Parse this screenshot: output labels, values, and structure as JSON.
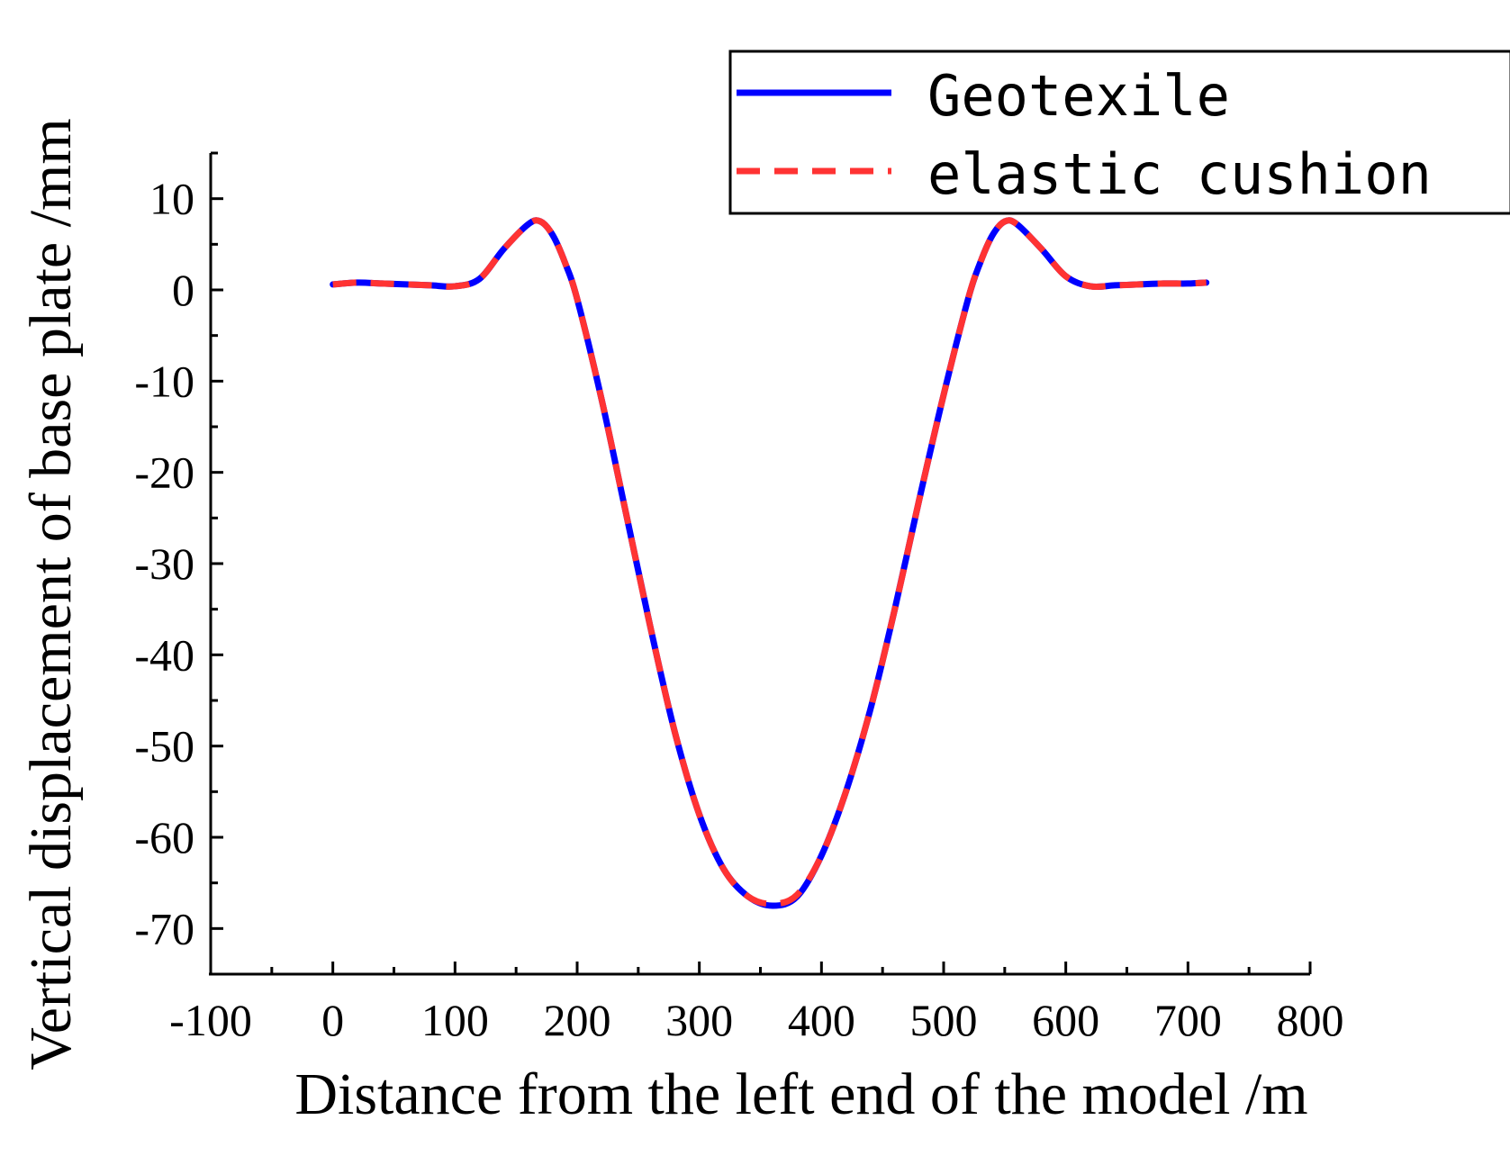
{
  "chart_data": {
    "type": "line",
    "xlabel": "Distance from the left end of the model /m",
    "ylabel": "Vertical displacement of base plate /mm",
    "xlim": [
      -100,
      800
    ],
    "ylim": [
      -75,
      15
    ],
    "x_ticks": [
      -100,
      0,
      100,
      200,
      300,
      400,
      500,
      600,
      700,
      800
    ],
    "y_ticks": [
      10,
      0,
      -10,
      -20,
      -30,
      -40,
      -50,
      -60,
      -70
    ],
    "x_tick_labels": [
      "-100",
      "0",
      "100",
      "200",
      "300",
      "400",
      "500",
      "600",
      "700",
      "800"
    ],
    "y_tick_labels": [
      "10",
      "0",
      "-10",
      "-20",
      "-30",
      "-40",
      "-50",
      "-60",
      "-70"
    ],
    "legend_position": "top-right",
    "grid": false,
    "series": [
      {
        "name": "Geotexile",
        "color": "#0000ff",
        "style": "solid",
        "x": [
          0,
          20,
          40,
          60,
          80,
          100,
          120,
          140,
          160,
          170,
          180,
          190,
          200,
          220,
          240,
          260,
          280,
          300,
          320,
          340,
          360,
          380,
          400,
          420,
          440,
          460,
          480,
          500,
          520,
          530,
          540,
          550,
          560,
          580,
          600,
          620,
          640,
          660,
          680,
          700,
          715
        ],
        "y": [
          0.6,
          0.8,
          0.7,
          0.6,
          0.5,
          0.4,
          1.2,
          4.5,
          7.2,
          7.5,
          6.0,
          3.0,
          -1.0,
          -12.0,
          -24.5,
          -37.0,
          -48.5,
          -57.5,
          -63.5,
          -66.5,
          -67.5,
          -66.5,
          -62.0,
          -55.0,
          -46.0,
          -35.0,
          -23.0,
          -11.5,
          -1.0,
          3.0,
          6.0,
          7.5,
          7.2,
          4.5,
          1.5,
          0.4,
          0.5,
          0.6,
          0.7,
          0.7,
          0.8
        ]
      },
      {
        "name": "elastic cushion",
        "color": "#ff3333",
        "style": "dashed",
        "x": [
          0,
          20,
          40,
          60,
          80,
          100,
          120,
          140,
          160,
          170,
          180,
          190,
          200,
          220,
          240,
          260,
          280,
          300,
          320,
          340,
          360,
          380,
          400,
          420,
          440,
          460,
          480,
          500,
          520,
          530,
          540,
          550,
          560,
          580,
          600,
          620,
          640,
          660,
          680,
          700,
          715
        ],
        "y": [
          0.6,
          0.8,
          0.7,
          0.6,
          0.5,
          0.4,
          1.2,
          4.5,
          7.2,
          7.5,
          6.0,
          3.0,
          -1.0,
          -12.0,
          -24.5,
          -37.0,
          -48.5,
          -57.5,
          -63.5,
          -66.5,
          -67.3,
          -66.3,
          -62.0,
          -55.0,
          -46.0,
          -35.0,
          -23.0,
          -11.5,
          -1.0,
          3.0,
          6.0,
          7.5,
          7.2,
          4.5,
          1.5,
          0.4,
          0.5,
          0.6,
          0.7,
          0.7,
          0.8
        ]
      }
    ]
  }
}
